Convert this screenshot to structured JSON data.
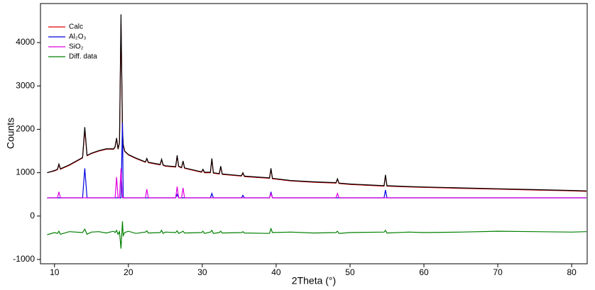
{
  "chart_data": {
    "type": "line",
    "x_label": "2Theta (°)",
    "y_label": "Counts",
    "x": [
      9,
      10,
      10.4,
      10.6,
      10.8,
      12,
      13.8,
      14.1,
      14.4,
      15,
      16,
      17,
      18,
      18.2,
      18.4,
      18.6,
      18.8,
      19,
      19.2,
      19.3,
      19.5,
      20,
      21,
      22.3,
      22.5,
      22.7,
      24.3,
      24.5,
      24.7,
      25,
      26.4,
      26.6,
      26.8,
      27.2,
      27.4,
      27.6,
      29.9,
      30.1,
      30.3,
      31.1,
      31.3,
      31.5,
      32.3,
      32.5,
      32.7,
      35.3,
      35.5,
      35.7,
      39.1,
      39.3,
      39.5,
      42,
      45,
      48.1,
      48.3,
      48.5,
      50,
      54.6,
      54.8,
      55,
      58,
      60,
      65,
      70,
      75,
      80,
      82
    ],
    "series": [
      {
        "name": "Calc",
        "color": "#e00000",
        "values": [
          1000,
          1040,
          1070,
          1180,
          1080,
          1170,
          1340,
          1980,
          1390,
          1440,
          1500,
          1540,
          1540,
          1590,
          1780,
          1540,
          1690,
          4450,
          1950,
          1640,
          1490,
          1410,
          1330,
          1240,
          1320,
          1230,
          1180,
          1300,
          1170,
          1150,
          1130,
          1380,
          1140,
          1110,
          1260,
          1100,
          1010,
          1070,
          1000,
          1000,
          1310,
          990,
          970,
          1140,
          960,
          920,
          990,
          910,
          870,
          1080,
          860,
          810,
          780,
          760,
          850,
          750,
          730,
          690,
          930,
          690,
          670,
          660,
          640,
          620,
          600,
          580,
          570
        ]
      },
      {
        "color": "#000000",
        "values": [
          1000,
          1050,
          1080,
          1200,
          1090,
          1180,
          1350,
          2050,
          1400,
          1450,
          1510,
          1550,
          1550,
          1600,
          1800,
          1550,
          1700,
          4650,
          2000,
          1650,
          1500,
          1420,
          1340,
          1250,
          1330,
          1240,
          1190,
          1310,
          1180,
          1160,
          1140,
          1400,
          1150,
          1120,
          1270,
          1110,
          1020,
          1080,
          1010,
          1010,
          1330,
          1000,
          980,
          1150,
          970,
          930,
          1000,
          920,
          880,
          1100,
          870,
          820,
          790,
          770,
          860,
          760,
          740,
          700,
          950,
          700,
          680,
          670,
          650,
          630,
          610,
          590,
          580
        ]
      },
      {
        "name": "Al₂O₃",
        "color": "#0000e0",
        "values": [
          420,
          420,
          420,
          420,
          420,
          420,
          420,
          1100,
          420,
          420,
          420,
          420,
          420,
          420,
          420,
          420,
          420,
          420,
          2150,
          420,
          420,
          420,
          420,
          420,
          420,
          420,
          420,
          420,
          420,
          420,
          420,
          500,
          420,
          420,
          420,
          420,
          420,
          420,
          420,
          420,
          520,
          420,
          420,
          420,
          420,
          420,
          480,
          420,
          420,
          560,
          420,
          420,
          420,
          420,
          420,
          420,
          420,
          420,
          600,
          420,
          420,
          420,
          420,
          420,
          420,
          420,
          420
        ]
      },
      {
        "name": "SiO₂",
        "color": "#e000e0",
        "values": [
          420,
          420,
          420,
          560,
          420,
          420,
          420,
          420,
          420,
          420,
          420,
          420,
          420,
          420,
          900,
          420,
          420,
          1100,
          420,
          420,
          420,
          420,
          420,
          420,
          620,
          420,
          420,
          420,
          420,
          420,
          420,
          680,
          420,
          420,
          650,
          420,
          420,
          420,
          420,
          420,
          420,
          420,
          420,
          420,
          420,
          420,
          420,
          420,
          420,
          520,
          420,
          420,
          420,
          420,
          520,
          420,
          420,
          420,
          420,
          420,
          420,
          420,
          420,
          420,
          420,
          420,
          420
        ]
      },
      {
        "name": "Diff. data",
        "color": "#008000",
        "values": [
          -430,
          -380,
          -400,
          -350,
          -420,
          -360,
          -380,
          -300,
          -420,
          -370,
          -360,
          -390,
          -350,
          -380,
          -330,
          -420,
          -360,
          -750,
          -120,
          -450,
          -380,
          -350,
          -400,
          -370,
          -340,
          -390,
          -380,
          -330,
          -400,
          -370,
          -380,
          -340,
          -400,
          -370,
          -350,
          -390,
          -380,
          -350,
          -400,
          -370,
          -330,
          -400,
          -380,
          -350,
          -390,
          -380,
          -360,
          -390,
          -400,
          -290,
          -380,
          -370,
          -390,
          -380,
          -350,
          -400,
          -380,
          -370,
          -330,
          -390,
          -370,
          -380,
          -370,
          -350,
          -360,
          -370,
          -360
        ]
      }
    ],
    "xlim": [
      8.1,
      82.1
    ],
    "ylim": [
      -1100,
      4900
    ],
    "xticks": [
      10,
      20,
      30,
      40,
      50,
      60,
      70,
      80
    ],
    "yticks": [
      -1000,
      0,
      1000,
      2000,
      3000,
      4000
    ],
    "legend": "upper-left"
  }
}
